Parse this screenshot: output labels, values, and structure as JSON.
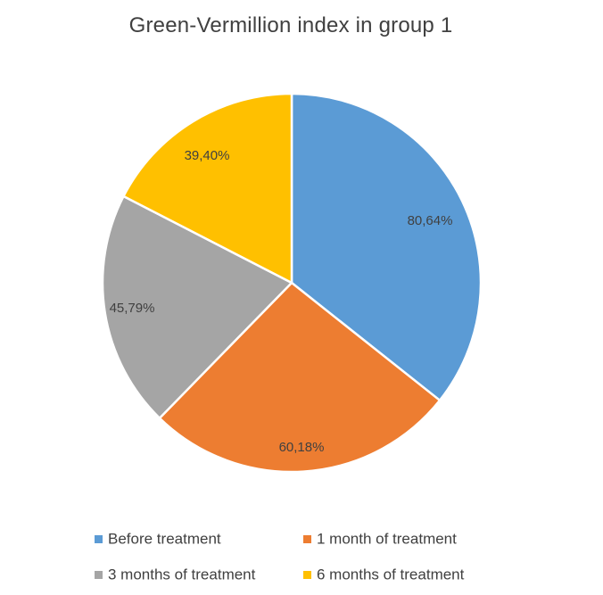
{
  "chart_data": {
    "type": "pie",
    "title": "Green-Vermillion index in group 1",
    "categories": [
      "Before treatment",
      "1 month of treatment",
      "3 months of treatment",
      "6 months of treatment"
    ],
    "values": [
      80.64,
      60.18,
      45.79,
      39.4
    ],
    "data_labels": [
      "80,64%",
      "60,18%",
      "45,79%",
      "39,40%"
    ],
    "colors": [
      "#5B9BD5",
      "#ED7D31",
      "#A5A5A5",
      "#FFC000"
    ],
    "start_angle_deg": 0,
    "direction": "clockwise",
    "legend": {
      "placement": "bottom",
      "columns": 2
    }
  }
}
